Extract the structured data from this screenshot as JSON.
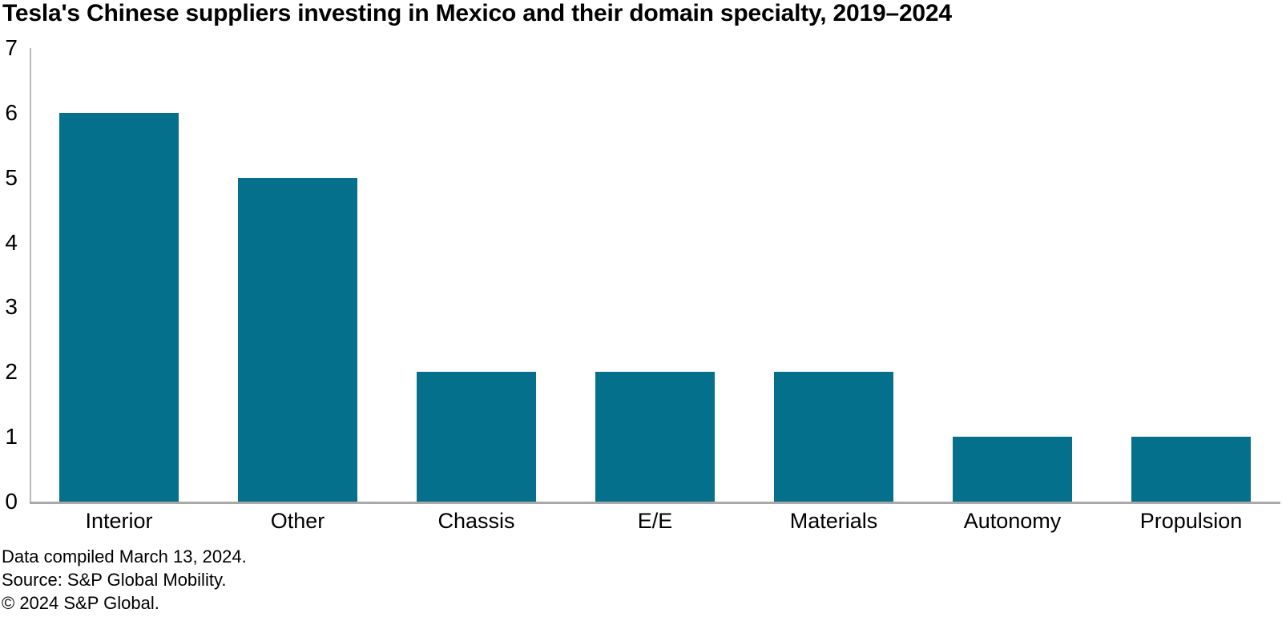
{
  "colors": {
    "bar": "#04708C",
    "y_axis_line": "#b9b9b9",
    "x_axis_line": "#a9a9a9",
    "text": "#000000"
  },
  "footer": {
    "line1": "Data compiled March 13, 2024.",
    "line2": "Source: S&P Global Mobility.",
    "line3": "© 2024 S&P Global."
  },
  "chart_data": {
    "type": "bar",
    "title": "Tesla's Chinese suppliers investing in Mexico and their domain specialty, 2019–2024",
    "categories": [
      "Interior",
      "Other",
      "Chassis",
      "E/E",
      "Materials",
      "Autonomy",
      "Propulsion"
    ],
    "values": [
      6,
      5,
      2,
      2,
      2,
      1,
      1
    ],
    "xlabel": "",
    "ylabel": "",
    "ylim": [
      0,
      7
    ],
    "yticks": [
      0,
      1,
      2,
      3,
      4,
      5,
      6,
      7
    ],
    "grid": false,
    "legend": false,
    "legend_position": "none",
    "bar_color": "#04708C"
  }
}
